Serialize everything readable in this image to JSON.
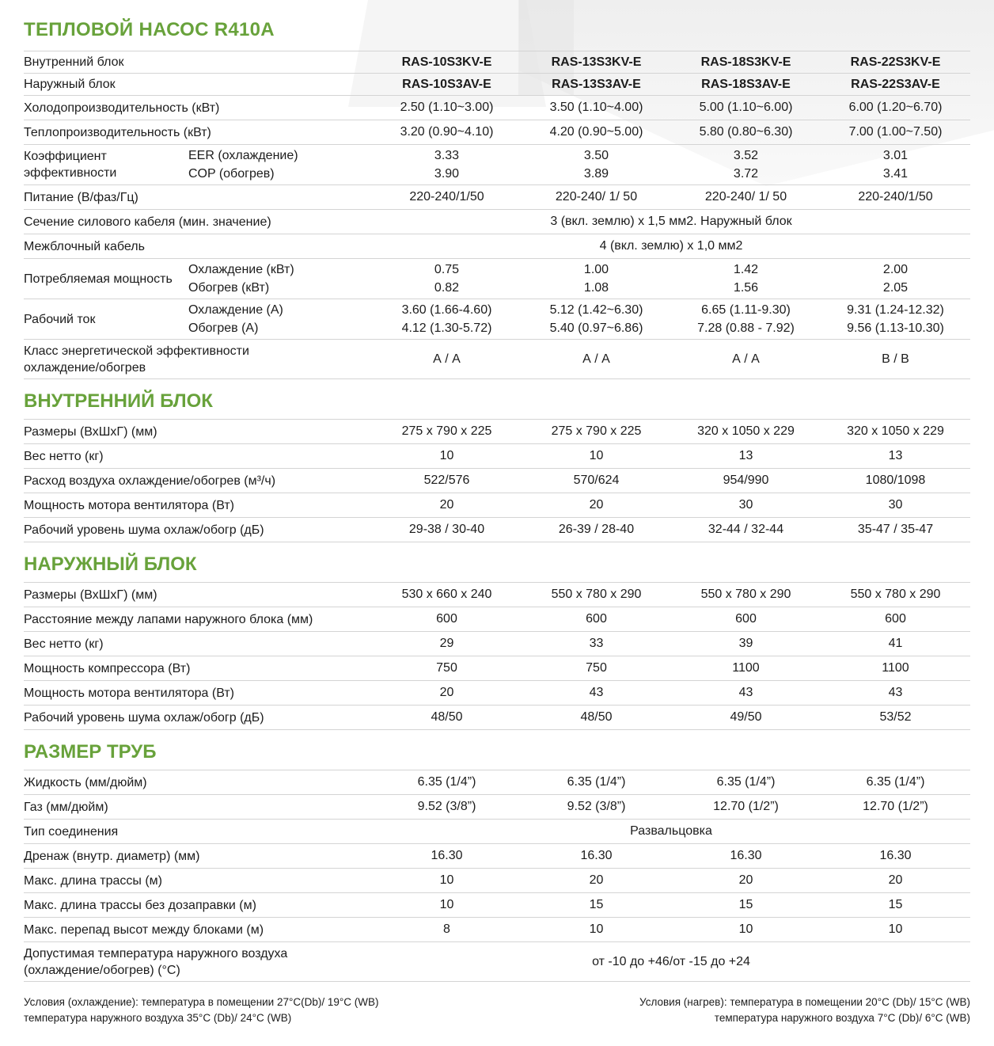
{
  "title": "ТЕПЛОВОЙ НАСОС R410A",
  "general": {
    "indoor": {
      "label": "Внутренний блок",
      "values": [
        "RAS-10S3KV-E",
        "RAS-13S3KV-E",
        "RAS-18S3KV-E",
        "RAS-22S3KV-E"
      ]
    },
    "outdoor": {
      "label": "Наружный блок",
      "values": [
        "RAS-10S3AV-E",
        "RAS-13S3AV-E",
        "RAS-18S3AV-E",
        "RAS-22S3AV-E"
      ]
    },
    "cooling": {
      "label": "Холодопроизводительность  (кВт)",
      "values": [
        "2.50 (1.10~3.00)",
        "3.50 (1.10~4.00)",
        "5.00 (1.10~6.00)",
        "6.00 (1.20~6.70)"
      ]
    },
    "heating": {
      "label": "Теплопроизводительность (кВт)",
      "values": [
        "3.20 (0.90~4.10)",
        "4.20 (0.90~5.00)",
        "5.80 (0.80~6.30)",
        "7.00 (1.00~7.50)"
      ]
    },
    "efficiency": {
      "label": "Коэффициент эффективности",
      "sub1": "EER (охлаждение)",
      "sub2": "COP (обогрев)",
      "row1": [
        "3.33",
        "3.50",
        "3.52",
        "3.01"
      ],
      "row2": [
        "3.90",
        "3.89",
        "3.72",
        "3.41"
      ]
    },
    "power_supply": {
      "label": "Питание (В/фаз/Гц)",
      "values": [
        "220-240/1/50",
        "220-240/ 1/ 50",
        "220-240/ 1/ 50",
        "220-240/1/50"
      ]
    },
    "power_cable": {
      "label": "Сечение силового кабеля (мин. значение)",
      "value": "3 (вкл. землю) x 1,5 мм2. Наружный блок"
    },
    "inter_cable": {
      "label": "Межблочный кабель",
      "value": "4 (вкл. землю) x 1,0 мм2"
    },
    "consumption": {
      "label": "Потребляемая мощность",
      "sub1": "Охлаждение (кВт)",
      "sub2": "Обогрев (кВт)",
      "row1": [
        "0.75",
        "1.00",
        "1.42",
        "2.00"
      ],
      "row2": [
        "0.82",
        "1.08",
        "1.56",
        "2.05"
      ]
    },
    "current": {
      "label": "Рабочий ток",
      "sub1": "Охлаждение (А)",
      "sub2": "Обогрев (А)",
      "row1": [
        "3.60 (1.66-4.60)",
        "5.12 (1.42~6.30)",
        "6.65 (1.11-9.30)",
        "9.31 (1.24-12.32)"
      ],
      "row2": [
        "4.12 (1.30-5.72)",
        "5.40 (0.97~6.86)",
        "7.28 (0.88 - 7.92)",
        "9.56 (1.13-10.30)"
      ]
    },
    "energy_class": {
      "label": "Класс энергетической эффективности охлаждение/обогрев",
      "values": [
        "А / А",
        "А / А",
        "А / А",
        "В / В"
      ]
    }
  },
  "indoor_unit": {
    "heading": "ВНУТРЕННИЙ БЛОК",
    "dimensions": {
      "label": "Размеры (ВхШхГ) (мм)",
      "values": [
        "275 x 790 x 225",
        "275 x 790 x 225",
        "320 x 1050 x 229",
        "320 x 1050 x 229"
      ]
    },
    "weight": {
      "label": "Вес нетто  (кг)",
      "values": [
        "10",
        "10",
        "13",
        "13"
      ]
    },
    "airflow": {
      "label": "Расход воздуха охлаждение/обогрев (м³/ч)",
      "values": [
        "522/576",
        "570/624",
        "954/990",
        "1080/1098"
      ]
    },
    "fan_motor": {
      "label": "Мощность мотора вентилятора (Вт)",
      "values": [
        "20",
        "20",
        "30",
        "30"
      ]
    },
    "noise": {
      "label": "Рабочий уровень шума охлаж/обогр (дБ)",
      "values": [
        "29-38 / 30-40",
        "26-39 / 28-40",
        "32-44 / 32-44",
        "35-47 / 35-47"
      ]
    }
  },
  "outdoor_unit": {
    "heading": "НАРУЖНЫЙ БЛОК",
    "dimensions": {
      "label": "Размеры (ВхШхГ) (мм)",
      "values": [
        "530 x 660 x 240",
        "550 x 780 x 290",
        "550 x 780 x 290",
        "550 x 780 x 290"
      ]
    },
    "feet_distance": {
      "label": "Расстояние между лапами наружного блока (мм)",
      "values": [
        "600",
        "600",
        "600",
        "600"
      ]
    },
    "weight": {
      "label": "Вес нетто  (кг)",
      "values": [
        "29",
        "33",
        "39",
        "41"
      ]
    },
    "compressor": {
      "label": "Мощность компрессора (Вт)",
      "values": [
        "750",
        "750",
        "1100",
        "1100"
      ]
    },
    "fan_motor": {
      "label": "Мощность мотора вентилятора (Вт)",
      "values": [
        "20",
        "43",
        "43",
        "43"
      ]
    },
    "noise": {
      "label": "Рабочий уровень шума охлаж/обогр (дБ)",
      "values": [
        "48/50",
        "48/50",
        "49/50",
        "53/52"
      ]
    }
  },
  "piping": {
    "heading": "РАЗМЕР ТРУБ",
    "liquid": {
      "label": "Жидкость (мм/дюйм)",
      "values": [
        "6.35 (1/4”)",
        "6.35 (1/4”)",
        "6.35 (1/4”)",
        "6.35 (1/4”)"
      ]
    },
    "gas": {
      "label": "Газ (мм/дюйм)",
      "values": [
        "9.52 (3/8”)",
        "9.52 (3/8”)",
        "12.70 (1/2”)",
        "12.70 (1/2”)"
      ]
    },
    "connection": {
      "label": "Тип соединения",
      "value": "Развальцовка"
    },
    "drain": {
      "label": "Дренаж (внутр. диаметр) (мм)",
      "values": [
        "16.30",
        "16.30",
        "16.30",
        "16.30"
      ]
    },
    "max_length": {
      "label": "Макс. длина трассы (м)",
      "values": [
        "10",
        "20",
        "20",
        "20"
      ]
    },
    "max_length_nocharge": {
      "label": "Макс. длина трассы без дозаправки (м)",
      "values": [
        "10",
        "15",
        "15",
        "15"
      ]
    },
    "max_height": {
      "label": "Макс. перепад высот между блоками (м)",
      "values": [
        "8",
        "10",
        "10",
        "10"
      ]
    },
    "ambient": {
      "label": "Допустимая температура наружного воздуха (охлаждение/обогрев) (°C)",
      "value": "от -10 до +46/от -15 до +24"
    }
  },
  "footnotes": {
    "cooling_line1": "Условия (охлаждение): температура в помещении 27°C(Db)/ 19°C (WB)",
    "cooling_line2": "температура наружного воздуха 35°C (Db)/ 24°C (WB)",
    "heating_line1": "Условия (нагрев): температура в помещении 20°C (Db)/ 15°C (WB)",
    "heating_line2": "температура наружного воздуха 7°C (Db)/ 6°C (WB)"
  }
}
